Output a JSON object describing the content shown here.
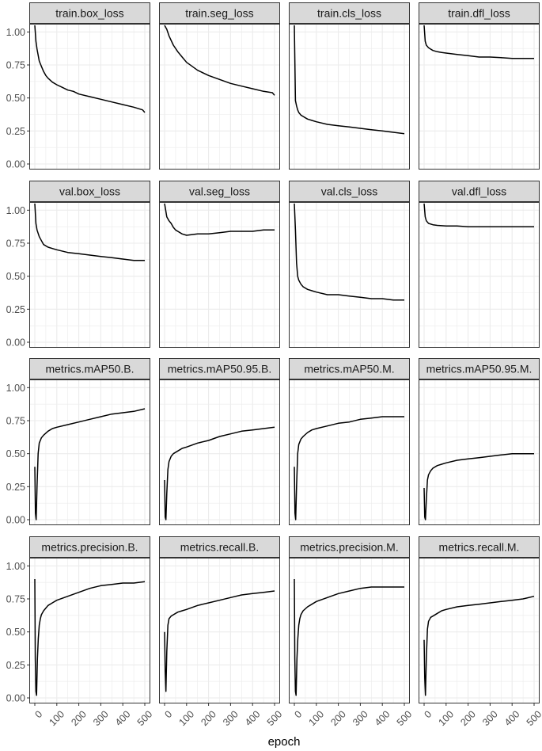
{
  "chart_data": {
    "type": "line",
    "layout": "facet grid, 4 columns x 4 rows, shared axes",
    "xlabel": "epoch",
    "ylabel": "",
    "xlim": [
      0,
      500
    ],
    "ylim": [
      0,
      1.05
    ],
    "x_ticks": [
      "0",
      "100",
      "200",
      "300",
      "400",
      "500"
    ],
    "y_ticks": [
      "0.00",
      "0.25",
      "0.50",
      "0.75",
      "1.00"
    ],
    "grid": true,
    "legend": "none",
    "colors": {
      "line": "#000000",
      "strip": "#d9d9d9",
      "grid": "#ebebeb",
      "border": "#333333"
    },
    "panels": [
      {
        "name": "train.box_loss",
        "x": [
          0,
          5,
          10,
          20,
          30,
          40,
          50,
          60,
          80,
          100,
          125,
          150,
          175,
          200,
          250,
          300,
          350,
          400,
          450,
          490,
          500
        ],
        "y": [
          1.05,
          0.93,
          0.87,
          0.78,
          0.74,
          0.7,
          0.67,
          0.65,
          0.62,
          0.6,
          0.58,
          0.56,
          0.55,
          0.53,
          0.51,
          0.49,
          0.47,
          0.45,
          0.43,
          0.41,
          0.39
        ]
      },
      {
        "name": "train.seg_loss",
        "x": [
          0,
          10,
          20,
          40,
          60,
          80,
          100,
          125,
          150,
          200,
          250,
          300,
          350,
          400,
          450,
          490,
          500
        ],
        "y": [
          1.05,
          1.02,
          0.97,
          0.9,
          0.85,
          0.81,
          0.77,
          0.74,
          0.71,
          0.67,
          0.64,
          0.61,
          0.59,
          0.57,
          0.55,
          0.54,
          0.52
        ]
      },
      {
        "name": "train.cls_loss",
        "x": [
          0,
          5,
          10,
          15,
          20,
          30,
          40,
          50,
          60,
          80,
          100,
          150,
          200,
          250,
          300,
          350,
          400,
          450,
          500
        ],
        "y": [
          1.05,
          0.48,
          0.44,
          0.41,
          0.39,
          0.37,
          0.36,
          0.35,
          0.34,
          0.33,
          0.32,
          0.3,
          0.29,
          0.28,
          0.27,
          0.26,
          0.25,
          0.24,
          0.23
        ]
      },
      {
        "name": "train.dfl_loss",
        "x": [
          0,
          5,
          10,
          20,
          30,
          40,
          60,
          80,
          100,
          150,
          200,
          250,
          300,
          350,
          400,
          450,
          500
        ],
        "y": [
          1.05,
          0.93,
          0.9,
          0.88,
          0.87,
          0.86,
          0.85,
          0.845,
          0.84,
          0.83,
          0.82,
          0.81,
          0.81,
          0.805,
          0.8,
          0.8,
          0.8
        ]
      },
      {
        "name": "val.box_loss",
        "x": [
          0,
          5,
          10,
          20,
          30,
          40,
          60,
          80,
          100,
          150,
          200,
          250,
          300,
          350,
          400,
          450,
          500
        ],
        "y": [
          1.05,
          0.9,
          0.85,
          0.8,
          0.77,
          0.74,
          0.72,
          0.71,
          0.7,
          0.68,
          0.67,
          0.66,
          0.65,
          0.64,
          0.63,
          0.62,
          0.62
        ]
      },
      {
        "name": "val.seg_loss",
        "x": [
          0,
          5,
          10,
          20,
          30,
          40,
          50,
          60,
          80,
          100,
          150,
          200,
          250,
          300,
          350,
          400,
          450,
          500
        ],
        "y": [
          1.05,
          1.0,
          0.95,
          0.92,
          0.9,
          0.87,
          0.85,
          0.84,
          0.82,
          0.81,
          0.82,
          0.82,
          0.83,
          0.84,
          0.84,
          0.84,
          0.85,
          0.85
        ]
      },
      {
        "name": "val.cls_loss",
        "x": [
          0,
          5,
          10,
          15,
          20,
          30,
          40,
          60,
          80,
          100,
          150,
          200,
          250,
          300,
          350,
          400,
          450,
          500
        ],
        "y": [
          1.05,
          0.85,
          0.6,
          0.5,
          0.47,
          0.44,
          0.42,
          0.4,
          0.39,
          0.38,
          0.36,
          0.36,
          0.35,
          0.34,
          0.33,
          0.33,
          0.32,
          0.32
        ]
      },
      {
        "name": "val.dfl_loss",
        "x": [
          0,
          5,
          10,
          20,
          40,
          60,
          100,
          150,
          200,
          300,
          400,
          500
        ],
        "y": [
          1.05,
          0.95,
          0.92,
          0.9,
          0.89,
          0.885,
          0.88,
          0.88,
          0.875,
          0.875,
          0.875,
          0.875
        ]
      },
      {
        "name": "metrics.mAP50.B.",
        "x": [
          0,
          3,
          6,
          10,
          15,
          20,
          30,
          40,
          60,
          80,
          100,
          150,
          200,
          250,
          300,
          350,
          400,
          450,
          500
        ],
        "y": [
          0.4,
          0.05,
          0.0,
          0.25,
          0.5,
          0.58,
          0.62,
          0.64,
          0.67,
          0.69,
          0.7,
          0.72,
          0.74,
          0.76,
          0.78,
          0.8,
          0.81,
          0.82,
          0.84
        ]
      },
      {
        "name": "metrics.mAP50.95.B.",
        "x": [
          0,
          3,
          6,
          10,
          15,
          20,
          30,
          40,
          60,
          80,
          100,
          150,
          200,
          250,
          300,
          350,
          400,
          450,
          500
        ],
        "y": [
          0.3,
          0.02,
          0.0,
          0.2,
          0.38,
          0.44,
          0.48,
          0.5,
          0.52,
          0.54,
          0.55,
          0.58,
          0.6,
          0.63,
          0.65,
          0.67,
          0.68,
          0.69,
          0.7
        ]
      },
      {
        "name": "metrics.mAP50.M.",
        "x": [
          0,
          3,
          6,
          10,
          15,
          20,
          30,
          40,
          60,
          80,
          100,
          150,
          200,
          250,
          300,
          350,
          400,
          450,
          500
        ],
        "y": [
          0.4,
          0.05,
          0.0,
          0.25,
          0.5,
          0.57,
          0.61,
          0.63,
          0.66,
          0.68,
          0.69,
          0.71,
          0.73,
          0.74,
          0.76,
          0.77,
          0.78,
          0.78,
          0.78
        ]
      },
      {
        "name": "metrics.mAP50.95.M.",
        "x": [
          0,
          3,
          6,
          10,
          15,
          20,
          30,
          40,
          60,
          80,
          100,
          150,
          200,
          250,
          300,
          350,
          400,
          450,
          500
        ],
        "y": [
          0.24,
          0.02,
          0.0,
          0.15,
          0.3,
          0.34,
          0.37,
          0.39,
          0.41,
          0.42,
          0.43,
          0.45,
          0.46,
          0.47,
          0.48,
          0.49,
          0.5,
          0.5,
          0.5
        ]
      },
      {
        "name": "metrics.precision.B.",
        "x": [
          0,
          2,
          5,
          8,
          12,
          16,
          20,
          25,
          30,
          40,
          60,
          80,
          100,
          150,
          200,
          250,
          300,
          350,
          400,
          450,
          500
        ],
        "y": [
          0.9,
          0.3,
          0.05,
          0.02,
          0.3,
          0.45,
          0.55,
          0.6,
          0.63,
          0.66,
          0.7,
          0.72,
          0.74,
          0.77,
          0.8,
          0.83,
          0.85,
          0.86,
          0.87,
          0.87,
          0.88
        ]
      },
      {
        "name": "metrics.recall.B.",
        "x": [
          0,
          3,
          6,
          10,
          15,
          20,
          30,
          40,
          60,
          80,
          100,
          150,
          200,
          250,
          300,
          350,
          400,
          450,
          500
        ],
        "y": [
          0.5,
          0.2,
          0.05,
          0.35,
          0.55,
          0.6,
          0.62,
          0.63,
          0.65,
          0.66,
          0.67,
          0.7,
          0.72,
          0.74,
          0.76,
          0.78,
          0.79,
          0.8,
          0.81
        ]
      },
      {
        "name": "metrics.precision.M.",
        "x": [
          0,
          2,
          5,
          8,
          12,
          16,
          20,
          25,
          30,
          40,
          60,
          80,
          100,
          150,
          200,
          250,
          300,
          350,
          400,
          450,
          500
        ],
        "y": [
          0.9,
          0.3,
          0.05,
          0.02,
          0.3,
          0.45,
          0.55,
          0.6,
          0.63,
          0.66,
          0.69,
          0.71,
          0.73,
          0.76,
          0.79,
          0.81,
          0.83,
          0.84,
          0.84,
          0.84,
          0.84
        ]
      },
      {
        "name": "metrics.recall.M.",
        "x": [
          0,
          3,
          6,
          10,
          15,
          20,
          30,
          40,
          60,
          80,
          100,
          150,
          200,
          250,
          300,
          350,
          400,
          450,
          500
        ],
        "y": [
          0.44,
          0.15,
          0.02,
          0.3,
          0.52,
          0.58,
          0.61,
          0.62,
          0.64,
          0.66,
          0.67,
          0.69,
          0.7,
          0.71,
          0.72,
          0.73,
          0.74,
          0.75,
          0.77
        ]
      }
    ]
  }
}
